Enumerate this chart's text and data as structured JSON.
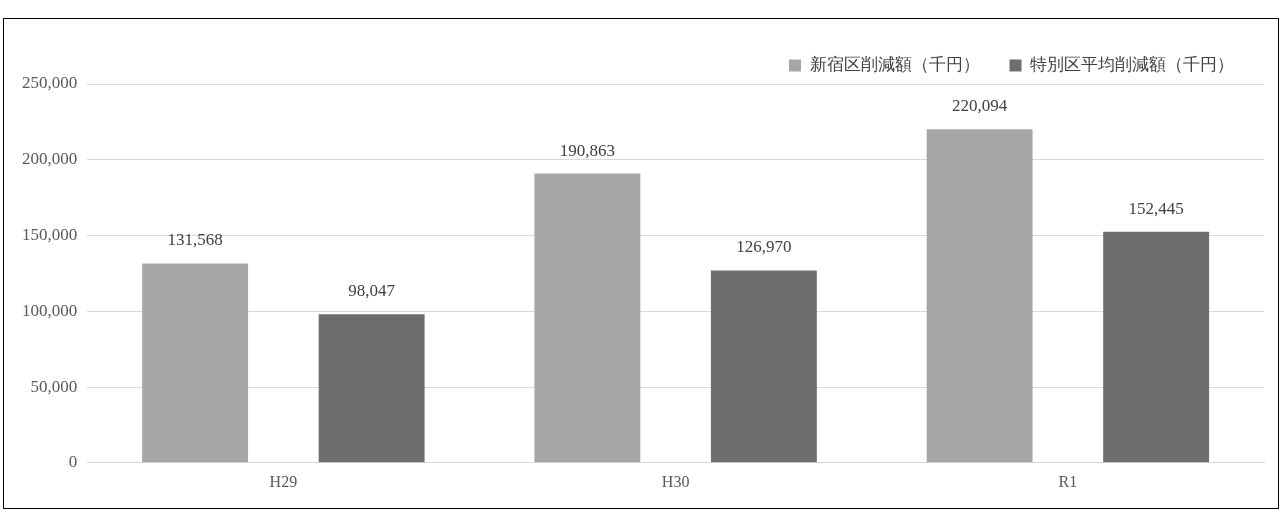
{
  "chart_data": {
    "type": "bar",
    "categories": [
      "H29",
      "H30",
      "R1"
    ],
    "series": [
      {
        "name": "新宿区削減額（千円）",
        "color": "#a6a6a6",
        "values": [
          131568,
          190863,
          220094
        ],
        "value_labels": [
          "131,568",
          "190,863",
          "220,094"
        ]
      },
      {
        "name": "特別区平均削減額（千円）",
        "color": "#6e6e6e",
        "values": [
          98047,
          126970,
          152445
        ],
        "value_labels": [
          "98,047",
          "126,970",
          "152,445"
        ]
      }
    ],
    "ylim": [
      0,
      250000
    ],
    "yticks": [
      {
        "value": 0,
        "label": "0"
      },
      {
        "value": 50000,
        "label": "50,000"
      },
      {
        "value": 100000,
        "label": "100,000"
      },
      {
        "value": 150000,
        "label": "150,000"
      },
      {
        "value": 200000,
        "label": "200,000"
      },
      {
        "value": 250000,
        "label": "250,000"
      }
    ],
    "grid": "y",
    "legend": "top right"
  }
}
